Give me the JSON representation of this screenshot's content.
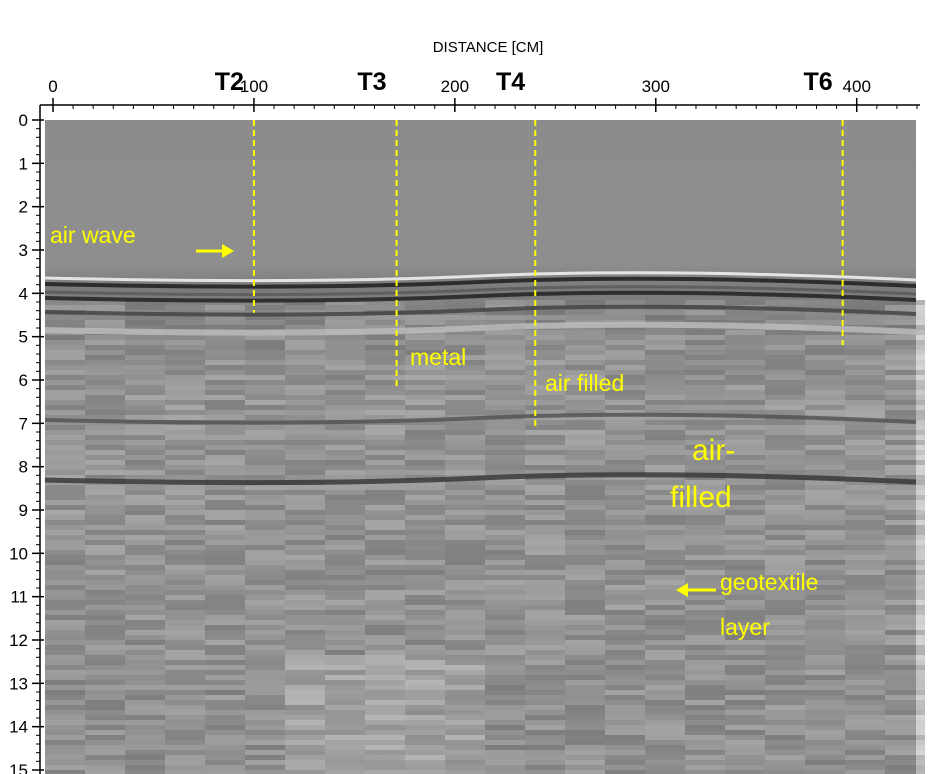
{
  "axes": {
    "x_label": "DISTANCE [CM]",
    "xlim": [
      0,
      430
    ],
    "xticks": [
      0,
      100,
      200,
      300,
      400
    ],
    "ylim": [
      0,
      15
    ],
    "yticks": [
      0,
      1,
      2,
      3,
      4,
      5,
      6,
      7,
      8,
      9,
      10,
      11,
      12,
      13,
      14,
      15
    ]
  },
  "markers": [
    {
      "label": "T2",
      "x": 100,
      "depth": 4.45
    },
    {
      "label": "T3",
      "x": 171,
      "depth": 6.15
    },
    {
      "label": "T4",
      "x": 240,
      "depth": 7.1
    },
    {
      "label": "T6",
      "x": 393,
      "depth": 5.2
    }
  ],
  "annotations": [
    "air wave",
    "metal",
    "air filled",
    "air-",
    "filled",
    "geotextile",
    "layer"
  ]
}
